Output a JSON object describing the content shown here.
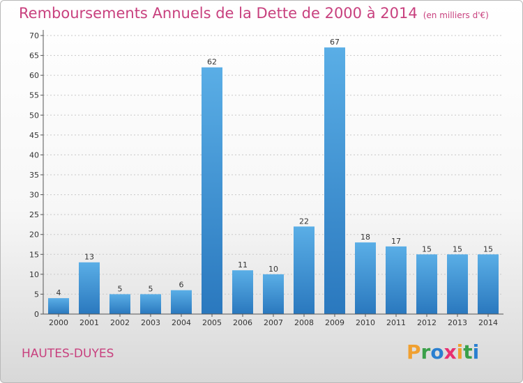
{
  "header": {
    "title": "Remboursements Annuels de la Dette de 2000 à 2014",
    "unit": "(en milliers d'€)"
  },
  "footer": {
    "place": "HAUTES-DUYES",
    "logo": {
      "text": "Proxiti",
      "letters": [
        {
          "char": "P",
          "color": "#f0a030"
        },
        {
          "char": "r",
          "color": "#3aa04a"
        },
        {
          "char": "o",
          "color": "#2a7fd0"
        },
        {
          "char": "x",
          "color": "#e83070"
        },
        {
          "char": "i",
          "color": "#f0a030"
        },
        {
          "char": "t",
          "color": "#3aa04a"
        },
        {
          "char": "i",
          "color": "#2a7fd0"
        }
      ]
    }
  },
  "chart_data": {
    "type": "bar",
    "title": "Remboursements Annuels de la Dette de 2000 à 2014",
    "subtitle": "(en milliers d'€)",
    "categories": [
      "2000",
      "2001",
      "2002",
      "2003",
      "2004",
      "2005",
      "2006",
      "2007",
      "2008",
      "2009",
      "2010",
      "2011",
      "2012",
      "2013",
      "2014"
    ],
    "values": [
      4,
      13,
      5,
      5,
      6,
      62,
      11,
      10,
      22,
      67,
      18,
      17,
      15,
      15,
      15
    ],
    "ylim": [
      0,
      70
    ],
    "yticks": [
      0,
      5,
      10,
      15,
      20,
      25,
      30,
      35,
      40,
      45,
      50,
      55,
      60,
      65,
      70
    ],
    "grid": true,
    "bar_color_top": "#5aaee6",
    "bar_color_bottom": "#2a78be"
  }
}
